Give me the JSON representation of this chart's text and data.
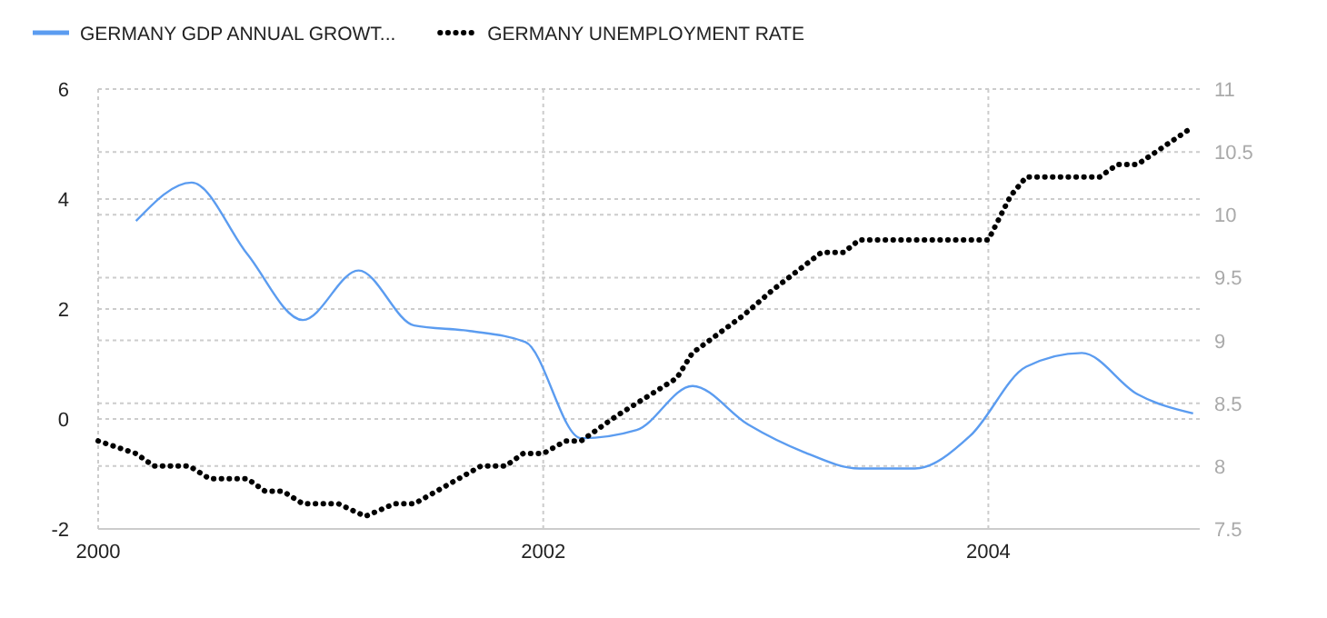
{
  "chart_data": {
    "type": "line",
    "xlim": [
      2000,
      2004.95
    ],
    "xticks": [
      2000,
      2002,
      2004
    ],
    "ylim": [
      -2,
      6
    ],
    "yticks": [
      -2,
      0,
      2,
      4,
      6
    ],
    "y2lim": [
      7.5,
      11
    ],
    "y2ticks": [
      7.5,
      8,
      8.5,
      9,
      9.5,
      10,
      10.5,
      11
    ],
    "grid": true,
    "legend": "top left",
    "series": [
      {
        "name": "GERMANY GDP ANNUAL GROWT...",
        "color": "#5b9cf0",
        "line_style": "solid",
        "x": [
          2000.17,
          2000.42,
          2000.67,
          2000.92,
          2001.17,
          2001.42,
          2001.67,
          2001.92,
          2002.17,
          2002.42,
          2002.67,
          2002.92,
          2003.17,
          2003.42,
          2003.67,
          2003.92,
          2004.17,
          2004.42,
          2004.67,
          2004.92
        ],
        "values": [
          3.6,
          4.3,
          3.0,
          1.8,
          2.7,
          1.7,
          1.6,
          1.4,
          -0.35,
          -0.2,
          0.6,
          -0.1,
          -0.6,
          -0.9,
          -0.9,
          -0.3,
          0.95,
          1.2,
          0.45,
          0.1
        ]
      },
      {
        "name": "GERMANY UNEMPLOYMENT RATE",
        "color": "#000000",
        "line_style": "dotted",
        "axis": "y2",
        "x": [
          2000,
          2000.17,
          2000.25,
          2000.41,
          2000.5,
          2000.67,
          2000.75,
          2000.83,
          2000.92,
          2001.08,
          2001.2,
          2001.33,
          2001.42,
          2001.52,
          2001.72,
          2001.83,
          2001.91,
          2002.0,
          2002.1,
          2002.17,
          2002.33,
          2002.6,
          2002.67,
          2002.9,
          2003.03,
          2003.25,
          2003.35,
          2003.42,
          2004.0,
          2004.1,
          2004.17,
          2004.5,
          2004.58,
          2004.67,
          2004.92
        ],
        "values": [
          8.2,
          8.1,
          8.0,
          8.0,
          7.9,
          7.9,
          7.8,
          7.8,
          7.7,
          7.7,
          7.6,
          7.7,
          7.7,
          7.8,
          8.0,
          8.0,
          8.1,
          8.1,
          8.2,
          8.2,
          8.4,
          8.7,
          8.9,
          9.2,
          9.4,
          9.7,
          9.7,
          9.8,
          9.8,
          10.15,
          10.3,
          10.3,
          10.4,
          10.4,
          10.7
        ]
      }
    ]
  }
}
